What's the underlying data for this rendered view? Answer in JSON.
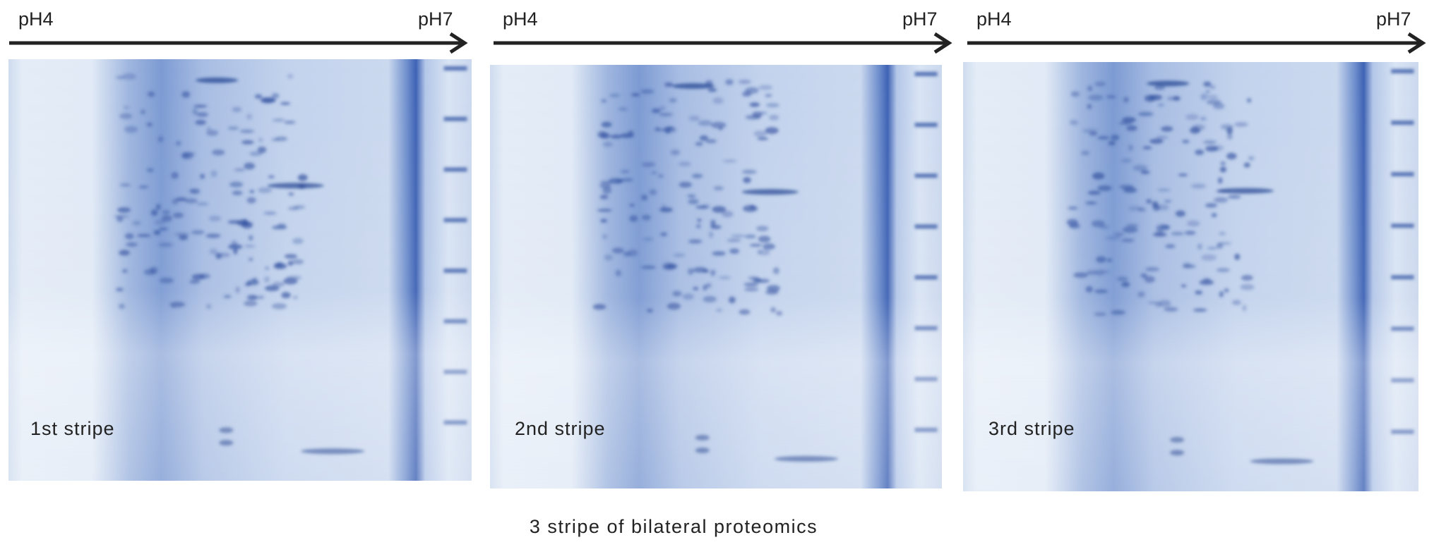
{
  "panels": [
    {
      "left_label": "pH4",
      "right_label": "pH7",
      "stripe_label": "1st stripe"
    },
    {
      "left_label": "pH4",
      "right_label": "pH7",
      "stripe_label": "2nd stripe"
    },
    {
      "left_label": "pH4",
      "right_label": "pH7",
      "stripe_label": "3rd stripe"
    }
  ],
  "caption": "3 stripe of bilateral proteomics"
}
